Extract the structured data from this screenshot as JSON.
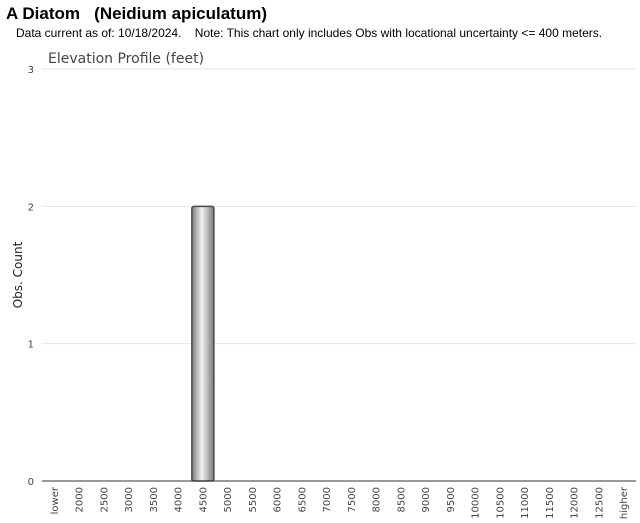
{
  "page": {
    "title": "A Diatom   (Neidium apiculatum)",
    "note": "Data current as of: 10/18/2024.    Note: This chart only includes Obs with locational uncertainty <= 400 meters."
  },
  "chart_data": {
    "type": "bar",
    "title": "Elevation Profile (feet)",
    "xlabel": "",
    "ylabel": "Obs. Count",
    "ylim": [
      0,
      3
    ],
    "yticks": [
      "0",
      "1",
      "2",
      "3"
    ],
    "grid": true,
    "categories": [
      "lower",
      "2000",
      "2500",
      "3000",
      "3500",
      "4000",
      "4500",
      "5000",
      "5500",
      "6000",
      "6500",
      "7000",
      "7500",
      "8000",
      "8500",
      "9000",
      "9500",
      "10000",
      "10500",
      "11000",
      "11500",
      "12000",
      "12500",
      "higher"
    ],
    "values": [
      0,
      0,
      0,
      0,
      0,
      0,
      2,
      0,
      0,
      0,
      0,
      0,
      0,
      0,
      0,
      0,
      0,
      0,
      0,
      0,
      0,
      0,
      0,
      0
    ],
    "colors": {
      "bar_edge": "#4a4a4a",
      "bar_dark": "#7a7a7a",
      "bar_light": "#f2f2f2",
      "grid": "#e6e6e6",
      "axis": "#333333",
      "text": "#444444"
    }
  }
}
